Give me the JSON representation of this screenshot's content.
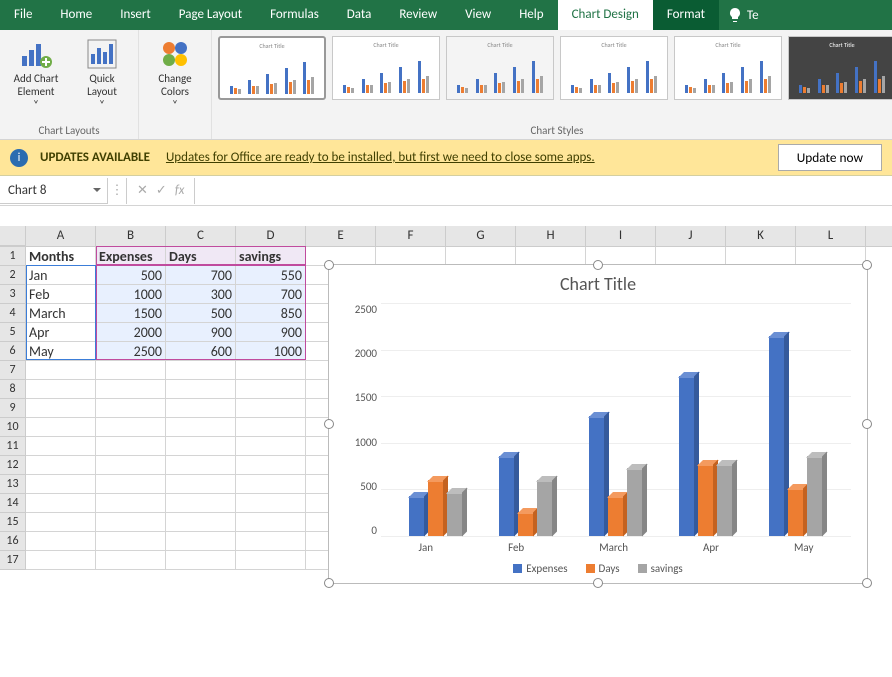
{
  "tabs": [
    "File",
    "Home",
    "Insert",
    "Page Layout",
    "Formulas",
    "Data",
    "Review",
    "View",
    "Help",
    "Chart Design",
    "Format"
  ],
  "active_tab": "Chart Design",
  "tell_me": "Te",
  "ribbon": {
    "add_chart_element": "Add Chart Element",
    "quick_layout": "Quick Layout",
    "change_colors": "Change Colors",
    "group_layouts": "Chart Layouts",
    "group_styles": "Chart Styles"
  },
  "update": {
    "title": "UPDATES AVAILABLE",
    "msg": "Updates for Office are ready to be installed, but first we need to close some apps.",
    "button": "Update now"
  },
  "name_box": "Chart 8",
  "fx": "fx",
  "columns": [
    "A",
    "B",
    "C",
    "D",
    "E",
    "F",
    "G",
    "H",
    "I",
    "J",
    "K",
    "L"
  ],
  "row_count": 17,
  "table": {
    "headers": [
      "Months",
      "Expenses",
      "Days",
      "savings"
    ],
    "rows": [
      [
        "Jan",
        500,
        700,
        550
      ],
      [
        "Feb",
        1000,
        300,
        700
      ],
      [
        "March",
        1500,
        500,
        850
      ],
      [
        "Apr",
        2000,
        900,
        900
      ],
      [
        "May",
        2500,
        600,
        1000
      ]
    ]
  },
  "chart": {
    "type": "bar-3d",
    "title": "Chart Title",
    "title_fontsize": 18,
    "categories": [
      "Jan",
      "Feb",
      "March",
      "Apr",
      "May"
    ],
    "series": [
      {
        "name": "Expenses",
        "color": "#4472c4",
        "top": "#6a8fd4",
        "side": "#355a9c",
        "values": [
          500,
          1000,
          1500,
          2000,
          2500
        ]
      },
      {
        "name": "Days",
        "color": "#ed7d31",
        "top": "#f49a5e",
        "side": "#c46220",
        "values": [
          700,
          300,
          500,
          900,
          600
        ]
      },
      {
        "name": "savings",
        "color": "#a5a5a5",
        "top": "#bdbdbd",
        "side": "#868686",
        "values": [
          550,
          700,
          850,
          900,
          1000
        ]
      }
    ],
    "ylim": [
      0,
      2500
    ],
    "ytick_step": 500,
    "background_color": "#ffffff",
    "grid_color": "#eeeeee"
  },
  "style_thumbs": [
    {
      "bg": "#ffffff"
    },
    {
      "bg": "#ffffff"
    },
    {
      "bg": "#f4f4f4"
    },
    {
      "bg": "#ffffff"
    },
    {
      "bg": "#ffffff"
    },
    {
      "bg": "#444444"
    }
  ],
  "colors": {
    "excel_green": "#217346",
    "series1": "#4472c4",
    "series2": "#ed7d31",
    "series3": "#a5a5a5"
  }
}
